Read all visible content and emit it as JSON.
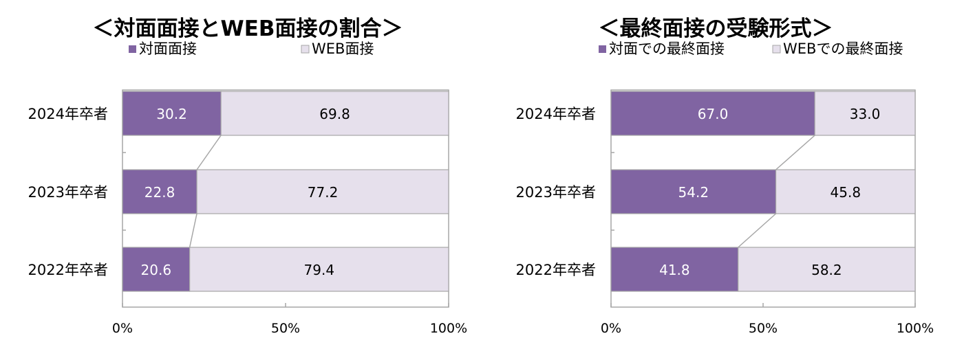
{
  "chart_data": [
    {
      "type": "bar",
      "orientation": "horizontal",
      "stacked": "percent",
      "title": "＜対面面接とWEB面接の割合＞",
      "legend_position": "top",
      "categories": [
        "2024年卒者",
        "2023年卒者",
        "2022年卒者"
      ],
      "series": [
        {
          "name": "対面面接",
          "values": [
            30.2,
            22.8,
            20.6
          ],
          "color": "#8064A2"
        },
        {
          "name": "WEB面接",
          "values": [
            69.8,
            77.2,
            79.4
          ],
          "color": "#E6E0EC"
        }
      ],
      "value_labels": {
        "対面面接": [
          "30.2",
          "22.8",
          "20.6"
        ],
        "WEB面接": [
          "69.8",
          "77.2",
          "79.4"
        ]
      },
      "xticks": [
        "0%",
        "50%",
        "100%"
      ],
      "xlim": [
        0,
        100
      ],
      "series_lines": true
    },
    {
      "type": "bar",
      "orientation": "horizontal",
      "stacked": "percent",
      "title": "＜最終面接の受験形式＞",
      "legend_position": "top",
      "categories": [
        "2024年卒者",
        "2023年卒者",
        "2022年卒者"
      ],
      "series": [
        {
          "name": "対面での最終面接",
          "values": [
            67.0,
            54.2,
            41.8
          ],
          "color": "#8064A2"
        },
        {
          "name": "WEBでの最終面接",
          "values": [
            33.0,
            45.8,
            58.2
          ],
          "color": "#E6E0EC"
        }
      ],
      "value_labels": {
        "対面での最終面接": [
          "67.0",
          "54.2",
          "41.8"
        ],
        "WEBでの最終面接": [
          "33.0",
          "45.8",
          "58.2"
        ]
      },
      "xticks": [
        "0%",
        "50%",
        "100%"
      ],
      "xlim": [
        0,
        100
      ],
      "series_lines": true
    }
  ],
  "colors": {
    "accent": "#8064A2",
    "light": "#E6E0EC",
    "border": "#A6A6A6",
    "text": "#000000",
    "label_on_dark": "#FFFFFF"
  }
}
